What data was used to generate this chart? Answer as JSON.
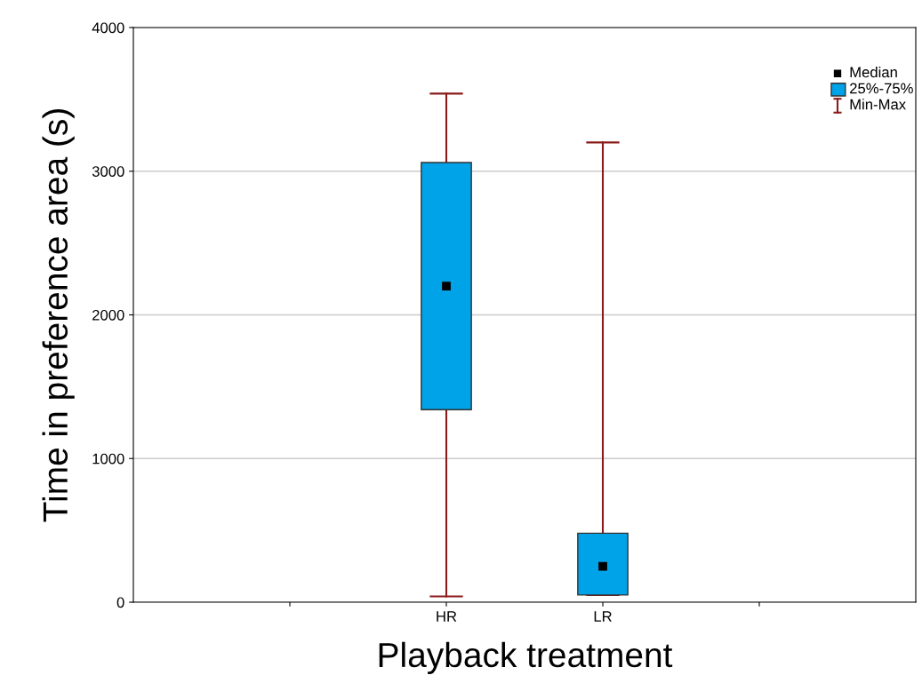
{
  "chart_data": {
    "type": "box",
    "xlabel": "Playback treatment",
    "ylabel": "Time in preference area (s)",
    "categories": [
      null,
      "HR",
      "LR",
      null
    ],
    "series": [
      {
        "color": "#00a2e8",
        "boxes": [
          null,
          {
            "low": 40,
            "q1": 1340,
            "median": 2200,
            "q3": 3060,
            "high": 3540
          },
          {
            "low": 50,
            "q1": 50,
            "median": 250,
            "q3": 480,
            "high": 3200
          },
          null
        ]
      }
    ],
    "annotations": [
      "Median",
      "25%-75%",
      "Min-Max"
    ],
    "ylim": [
      0,
      4000
    ],
    "yticks": [
      0,
      1000,
      2000,
      3000,
      4000
    ],
    "grid": "y"
  }
}
